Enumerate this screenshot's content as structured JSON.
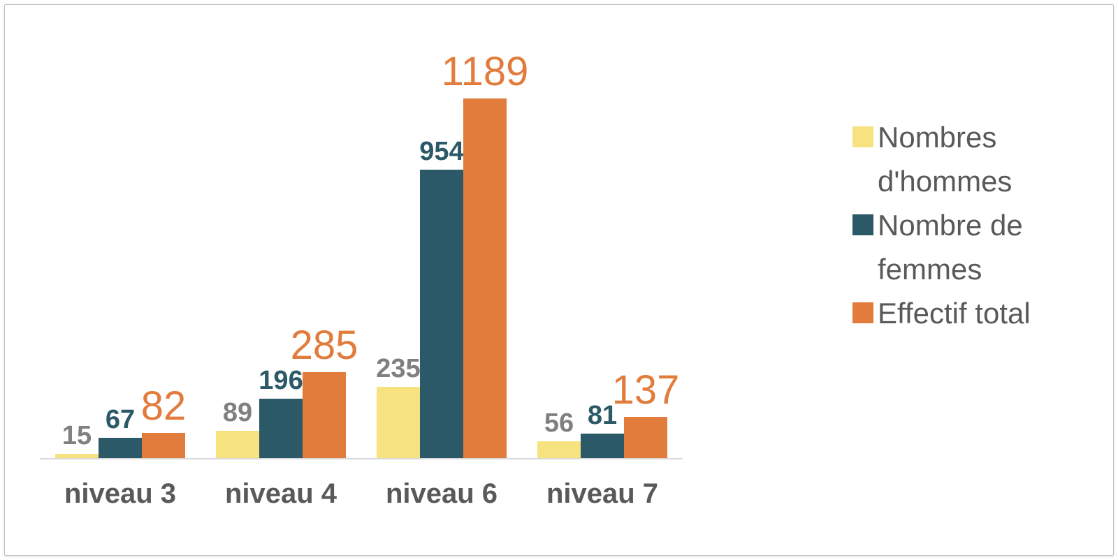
{
  "chart_data": {
    "type": "bar",
    "title": "",
    "categories": [
      "niveau 3",
      "niveau 4",
      "niveau 6",
      "niveau 7"
    ],
    "series": [
      {
        "name": "Nombres d'hommes",
        "color": "#F6E27F",
        "label_color": "#808080",
        "values": [
          15,
          89,
          235,
          56
        ]
      },
      {
        "name": "Nombre de femmes",
        "color": "#2C5967",
        "label_color": "#2C5967",
        "values": [
          67,
          196,
          954,
          81
        ]
      },
      {
        "name": "Effectif total",
        "color": "#E17C3C",
        "label_color": "#E17C3C",
        "values": [
          82,
          285,
          1189,
          137
        ]
      }
    ],
    "ylim": [
      0,
      1189
    ],
    "grid": false,
    "legend_position": "right",
    "axis_line_color": "#d9d9d9",
    "category_label_color": "#595959",
    "legend_text_color": "#595959"
  }
}
